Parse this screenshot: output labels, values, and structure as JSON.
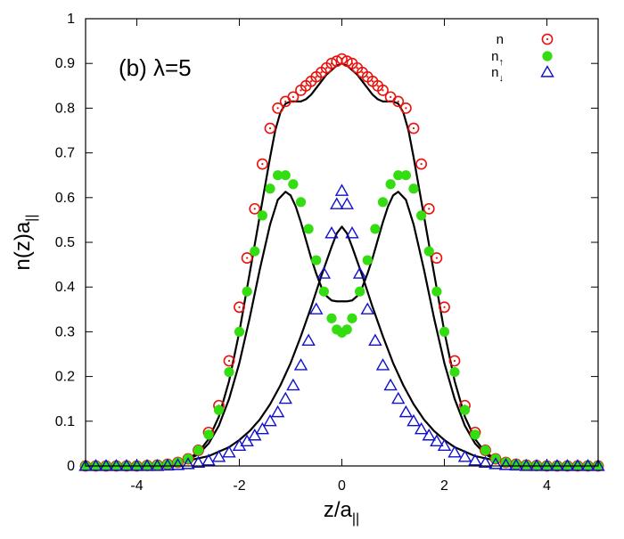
{
  "chart_data": {
    "type": "scatter",
    "panel_label": "(b) λ=5",
    "xlabel": {
      "base": "z/a",
      "sub": "||"
    },
    "ylabel": {
      "base": "n(z)a",
      "sub": "||"
    },
    "xlim": [
      -5,
      5
    ],
    "ylim": [
      0,
      1
    ],
    "xticks": [
      -4,
      -2,
      0,
      2,
      4
    ],
    "xtick_labels": [
      "-4",
      "-2",
      "0",
      "2",
      "4"
    ],
    "yticks": [
      0,
      0.1,
      0.2,
      0.3,
      0.4,
      0.5,
      0.6,
      0.7,
      0.8,
      0.9,
      1
    ],
    "ytick_labels": [
      "0",
      "0.1",
      "0.2",
      "0.3",
      "0.4",
      "0.5",
      "0.6",
      "0.7",
      "0.8",
      "0.9",
      "1"
    ],
    "grid": false,
    "legend_position": "top-right",
    "series": [
      {
        "name": "n",
        "label_base": "n",
        "label_sub": "",
        "marker": "open-circle",
        "color": "#e8120c",
        "x": [
          -5.0,
          -4.8,
          -4.6,
          -4.4,
          -4.2,
          -4.0,
          -3.8,
          -3.6,
          -3.4,
          -3.2,
          -3.0,
          -2.8,
          -2.6,
          -2.4,
          -2.2,
          -2.0,
          -1.85,
          -1.7,
          -1.55,
          -1.4,
          -1.25,
          -1.1,
          -0.95,
          -0.8,
          -0.7,
          -0.6,
          -0.5,
          -0.4,
          -0.3,
          -0.2,
          -0.1,
          0.0,
          0.1,
          0.2,
          0.3,
          0.4,
          0.5,
          0.6,
          0.7,
          0.8,
          0.95,
          1.1,
          1.25,
          1.4,
          1.55,
          1.7,
          1.85,
          2.0,
          2.2,
          2.4,
          2.6,
          2.8,
          3.0,
          3.2,
          3.4,
          3.6,
          3.8,
          4.0,
          4.2,
          4.4,
          4.6,
          4.8,
          5.0
        ],
        "y": [
          0.0,
          0.0,
          0.0,
          0.0,
          0.0,
          0.0,
          0.001,
          0.002,
          0.004,
          0.008,
          0.016,
          0.035,
          0.075,
          0.135,
          0.235,
          0.355,
          0.465,
          0.575,
          0.675,
          0.755,
          0.8,
          0.815,
          0.825,
          0.84,
          0.85,
          0.86,
          0.87,
          0.88,
          0.89,
          0.9,
          0.905,
          0.91,
          0.905,
          0.9,
          0.89,
          0.88,
          0.87,
          0.86,
          0.85,
          0.84,
          0.825,
          0.815,
          0.8,
          0.755,
          0.675,
          0.575,
          0.465,
          0.355,
          0.235,
          0.135,
          0.075,
          0.035,
          0.016,
          0.008,
          0.004,
          0.002,
          0.001,
          0.0,
          0.0,
          0.0,
          0.0,
          0.0,
          0.0
        ]
      },
      {
        "name": "n↑",
        "label_base": "n",
        "label_sub": "↑",
        "marker": "filled-circle",
        "color": "#33dd11",
        "x": [
          -5.0,
          -4.8,
          -4.6,
          -4.4,
          -4.2,
          -4.0,
          -3.8,
          -3.6,
          -3.4,
          -3.2,
          -3.0,
          -2.8,
          -2.6,
          -2.4,
          -2.2,
          -2.0,
          -1.85,
          -1.7,
          -1.55,
          -1.4,
          -1.25,
          -1.1,
          -0.95,
          -0.8,
          -0.65,
          -0.5,
          -0.35,
          -0.2,
          -0.1,
          0.0,
          0.1,
          0.2,
          0.35,
          0.5,
          0.65,
          0.8,
          0.95,
          1.1,
          1.25,
          1.4,
          1.55,
          1.7,
          1.85,
          2.0,
          2.2,
          2.4,
          2.6,
          2.8,
          3.0,
          3.2,
          3.4,
          3.6,
          3.8,
          4.0,
          4.2,
          4.4,
          4.6,
          4.8,
          5.0
        ],
        "y": [
          0.0,
          0.0,
          0.0,
          0.0,
          0.0,
          0.0,
          0.001,
          0.002,
          0.004,
          0.008,
          0.016,
          0.035,
          0.07,
          0.125,
          0.21,
          0.3,
          0.39,
          0.48,
          0.56,
          0.62,
          0.65,
          0.65,
          0.63,
          0.59,
          0.53,
          0.46,
          0.39,
          0.33,
          0.305,
          0.298,
          0.305,
          0.33,
          0.39,
          0.46,
          0.53,
          0.59,
          0.63,
          0.65,
          0.65,
          0.62,
          0.56,
          0.48,
          0.39,
          0.3,
          0.21,
          0.125,
          0.07,
          0.035,
          0.016,
          0.008,
          0.004,
          0.002,
          0.001,
          0.0,
          0.0,
          0.0,
          0.0,
          0.0,
          0.0
        ]
      },
      {
        "name": "n↓",
        "label_base": "n",
        "label_sub": "↓",
        "marker": "open-triangle",
        "color": "#1010cc",
        "x": [
          -5.0,
          -4.8,
          -4.6,
          -4.4,
          -4.2,
          -4.0,
          -3.8,
          -3.6,
          -3.4,
          -3.2,
          -3.0,
          -2.8,
          -2.6,
          -2.4,
          -2.2,
          -2.0,
          -1.85,
          -1.7,
          -1.55,
          -1.4,
          -1.25,
          -1.1,
          -0.95,
          -0.8,
          -0.65,
          -0.5,
          -0.35,
          -0.2,
          -0.1,
          0.0,
          0.1,
          0.2,
          0.35,
          0.5,
          0.65,
          0.8,
          0.95,
          1.1,
          1.25,
          1.4,
          1.55,
          1.7,
          1.85,
          2.0,
          2.2,
          2.4,
          2.6,
          2.8,
          3.0,
          3.2,
          3.4,
          3.6,
          3.8,
          4.0,
          4.2,
          4.4,
          4.6,
          4.8,
          5.0
        ],
        "y": [
          0.0,
          0.0,
          0.0,
          0.0,
          0.0,
          0.0,
          0.0,
          0.0,
          0.001,
          0.002,
          0.004,
          0.007,
          0.012,
          0.02,
          0.03,
          0.045,
          0.055,
          0.068,
          0.082,
          0.1,
          0.12,
          0.15,
          0.18,
          0.225,
          0.28,
          0.35,
          0.43,
          0.52,
          0.585,
          0.615,
          0.585,
          0.52,
          0.43,
          0.35,
          0.28,
          0.225,
          0.18,
          0.15,
          0.12,
          0.1,
          0.082,
          0.068,
          0.055,
          0.045,
          0.03,
          0.02,
          0.012,
          0.007,
          0.004,
          0.002,
          0.001,
          0.0,
          0.0,
          0.0,
          0.0,
          0.0,
          0.0,
          0.0,
          0.0
        ]
      },
      {
        "name": "",
        "marker": "line",
        "color": "#000000",
        "x": [
          -5.0,
          -4.5,
          -4.0,
          -3.5,
          -3.2,
          -3.0,
          -2.8,
          -2.6,
          -2.4,
          -2.2,
          -2.0,
          -1.8,
          -1.6,
          -1.4,
          -1.3,
          -1.2,
          -1.1,
          -1.0,
          -0.9,
          -0.8,
          -0.7,
          -0.6,
          -0.5,
          -0.4,
          -0.3,
          -0.2,
          -0.1,
          0.0,
          0.1,
          0.2,
          0.3,
          0.4,
          0.5,
          0.6,
          0.7,
          0.8,
          0.9,
          1.0,
          1.1,
          1.2,
          1.3,
          1.4,
          1.6,
          1.8,
          2.0,
          2.2,
          2.4,
          2.6,
          2.8,
          3.0,
          3.2,
          3.5,
          4.0,
          4.5,
          5.0
        ],
        "y": [
          0.0,
          0.0,
          0.001,
          0.004,
          0.009,
          0.016,
          0.03,
          0.06,
          0.11,
          0.19,
          0.3,
          0.43,
          0.56,
          0.69,
          0.75,
          0.79,
          0.81,
          0.815,
          0.815,
          0.815,
          0.82,
          0.83,
          0.845,
          0.86,
          0.875,
          0.885,
          0.895,
          0.9,
          0.895,
          0.885,
          0.875,
          0.86,
          0.845,
          0.83,
          0.82,
          0.815,
          0.815,
          0.815,
          0.81,
          0.79,
          0.75,
          0.69,
          0.56,
          0.43,
          0.3,
          0.19,
          0.11,
          0.06,
          0.03,
          0.016,
          0.009,
          0.004,
          0.001,
          0.0,
          0.0
        ]
      },
      {
        "name": "",
        "marker": "line",
        "color": "#000000",
        "x": [
          -5.0,
          -4.5,
          -4.0,
          -3.5,
          -3.2,
          -3.0,
          -2.8,
          -2.6,
          -2.4,
          -2.2,
          -2.0,
          -1.8,
          -1.6,
          -1.4,
          -1.25,
          -1.1,
          -1.0,
          -0.9,
          -0.8,
          -0.7,
          -0.6,
          -0.5,
          -0.4,
          -0.3,
          -0.2,
          -0.1,
          0.0,
          0.1,
          0.2,
          0.3,
          0.4,
          0.5,
          0.6,
          0.7,
          0.8,
          0.9,
          1.0,
          1.1,
          1.25,
          1.4,
          1.6,
          1.8,
          2.0,
          2.2,
          2.4,
          2.6,
          2.8,
          3.0,
          3.2,
          3.5,
          4.0,
          4.5,
          5.0
        ],
        "y": [
          0.0,
          0.0,
          0.001,
          0.004,
          0.008,
          0.014,
          0.026,
          0.05,
          0.09,
          0.15,
          0.23,
          0.33,
          0.44,
          0.54,
          0.595,
          0.613,
          0.605,
          0.58,
          0.545,
          0.505,
          0.465,
          0.43,
          0.4,
          0.38,
          0.37,
          0.368,
          0.368,
          0.368,
          0.37,
          0.38,
          0.4,
          0.43,
          0.465,
          0.505,
          0.545,
          0.58,
          0.605,
          0.613,
          0.595,
          0.54,
          0.44,
          0.33,
          0.23,
          0.15,
          0.09,
          0.05,
          0.026,
          0.014,
          0.008,
          0.004,
          0.001,
          0.0,
          0.0
        ]
      },
      {
        "name": "",
        "marker": "line",
        "color": "#000000",
        "x": [
          -5.0,
          -4.5,
          -4.0,
          -3.5,
          -3.0,
          -2.6,
          -2.2,
          -2.0,
          -1.8,
          -1.6,
          -1.4,
          -1.2,
          -1.0,
          -0.8,
          -0.6,
          -0.4,
          -0.2,
          -0.1,
          0.0,
          0.1,
          0.2,
          0.4,
          0.6,
          0.8,
          1.0,
          1.2,
          1.4,
          1.6,
          1.8,
          2.0,
          2.2,
          2.6,
          3.0,
          3.5,
          4.0,
          4.5,
          5.0
        ],
        "y": [
          0.0,
          0.001,
          0.002,
          0.005,
          0.012,
          0.022,
          0.042,
          0.058,
          0.078,
          0.104,
          0.138,
          0.18,
          0.23,
          0.29,
          0.355,
          0.425,
          0.49,
          0.52,
          0.535,
          0.52,
          0.49,
          0.425,
          0.355,
          0.29,
          0.23,
          0.18,
          0.138,
          0.104,
          0.078,
          0.058,
          0.042,
          0.022,
          0.012,
          0.005,
          0.002,
          0.001,
          0.0
        ]
      }
    ]
  }
}
